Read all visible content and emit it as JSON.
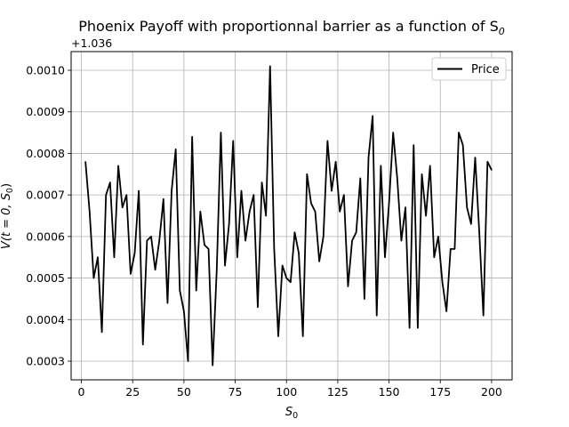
{
  "chart_data": {
    "type": "line",
    "title": "Phoenix Payoff with proportionnal barrier as a function of S",
    "title_subscript": "0",
    "xlabel": "S",
    "xlabel_subscript": "0",
    "ylabel": "V(t = 0, S",
    "ylabel_subscript": "0",
    "ylabel_suffix": ")",
    "y_offset_label": "+1.036",
    "xlim": [
      -5,
      210
    ],
    "ylim": [
      0.000255,
      0.001045
    ],
    "xticks": [
      0,
      25,
      50,
      75,
      100,
      125,
      150,
      175,
      200
    ],
    "xtick_labels": [
      "0",
      "25",
      "50",
      "75",
      "100",
      "125",
      "150",
      "175",
      "200"
    ],
    "yticks": [
      0.0003,
      0.0004,
      0.0005,
      0.0006,
      0.0007,
      0.0008,
      0.0009,
      0.001
    ],
    "ytick_labels": [
      "0.0003",
      "0.0004",
      "0.0005",
      "0.0006",
      "0.0007",
      "0.0008",
      "0.0009",
      "0.0010"
    ],
    "grid": true,
    "legend_position": "top-right",
    "series": [
      {
        "name": "Price",
        "color": "#000000",
        "x": [
          2,
          4,
          6,
          8,
          10,
          12,
          14,
          16,
          18,
          20,
          22,
          24,
          26,
          28,
          30,
          32,
          34,
          36,
          38,
          40,
          42,
          44,
          46,
          48,
          50,
          52,
          54,
          56,
          58,
          60,
          62,
          64,
          66,
          68,
          70,
          72,
          74,
          76,
          78,
          80,
          82,
          84,
          86,
          88,
          90,
          92,
          94,
          96,
          98,
          100,
          102,
          104,
          106,
          108,
          110,
          112,
          114,
          116,
          118,
          120,
          122,
          124,
          126,
          128,
          130,
          132,
          134,
          136,
          138,
          140,
          142,
          144,
          146,
          148,
          150,
          152,
          154,
          156,
          158,
          160,
          162,
          164,
          166,
          168,
          170,
          172,
          174,
          176,
          178,
          180,
          182,
          184,
          186,
          188,
          190,
          192,
          194,
          196,
          198,
          200
        ],
        "y": [
          0.00078,
          0.00066,
          0.0005,
          0.00055,
          0.00037,
          0.0007,
          0.00073,
          0.00055,
          0.00077,
          0.00067,
          0.0007,
          0.00051,
          0.00056,
          0.00071,
          0.00034,
          0.00059,
          0.0006,
          0.00052,
          0.00059,
          0.00069,
          0.00044,
          0.00071,
          0.00081,
          0.00047,
          0.00042,
          0.0003,
          0.00084,
          0.00047,
          0.00066,
          0.00058,
          0.00057,
          0.00029,
          0.00052,
          0.00085,
          0.00053,
          0.00063,
          0.00083,
          0.00055,
          0.00071,
          0.00059,
          0.00066,
          0.0007,
          0.00043,
          0.00073,
          0.00065,
          0.00101,
          0.00057,
          0.00036,
          0.00053,
          0.0005,
          0.00049,
          0.00061,
          0.00056,
          0.00036,
          0.00075,
          0.00068,
          0.00066,
          0.00054,
          0.0006,
          0.00083,
          0.00071,
          0.00078,
          0.00066,
          0.0007,
          0.00048,
          0.00059,
          0.00061,
          0.00074,
          0.00045,
          0.00079,
          0.00089,
          0.00041,
          0.00077,
          0.00055,
          0.00068,
          0.00085,
          0.00074,
          0.00059,
          0.00067,
          0.00038,
          0.00082,
          0.00038,
          0.00075,
          0.00065,
          0.00077,
          0.00055,
          0.0006,
          0.00049,
          0.00042,
          0.00057,
          0.00057,
          0.00085,
          0.00082,
          0.00067,
          0.00063,
          0.00079,
          0.00061,
          0.00041,
          0.00078,
          0.00076
        ]
      }
    ]
  }
}
